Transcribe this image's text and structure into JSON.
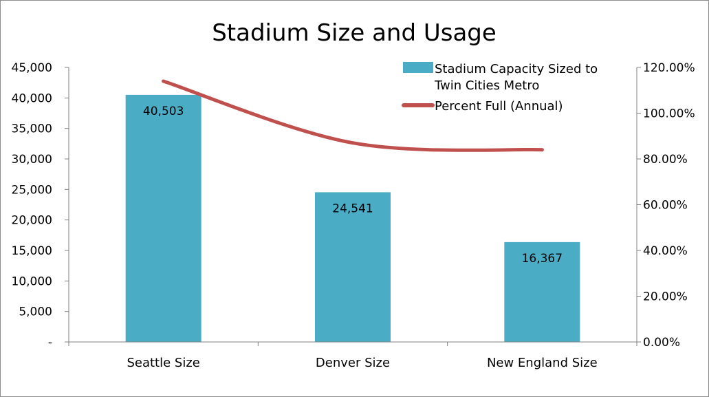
{
  "chart_data": {
    "type": "bar",
    "title": "Stadium Size and Usage",
    "categories": [
      "Seattle Size",
      "Denver Size",
      "New England Size"
    ],
    "series": [
      {
        "name": "Stadium Capacity Sized to Twin Cities Metro",
        "type": "bar",
        "axis": "left",
        "color": "#4BACC6",
        "values": [
          40503,
          24541,
          16367
        ],
        "data_labels": [
          "40,503",
          "24,541",
          "16,367"
        ]
      },
      {
        "name": "Percent Full (Annual)",
        "type": "line",
        "axis": "right",
        "color": "#C0504D",
        "smooth": true,
        "values": [
          1.14,
          0.87,
          0.84
        ]
      }
    ],
    "legend_name_lines": [
      [
        "Stadium Capacity Sized to",
        "Twin Cities Metro"
      ],
      [
        "Percent Full (Annual)"
      ]
    ],
    "y_left": {
      "ylim": [
        0,
        45000
      ],
      "ticks": [
        0,
        5000,
        10000,
        15000,
        20000,
        25000,
        30000,
        35000,
        40000,
        45000
      ],
      "tick_labels": [
        "-",
        "5,000",
        "10,000",
        "15,000",
        "20,000",
        "25,000",
        "30,000",
        "35,000",
        "40,000",
        "45,000"
      ]
    },
    "y_right": {
      "ylim": [
        0,
        1.2
      ],
      "ticks": [
        0,
        0.2,
        0.4,
        0.6,
        0.8,
        1.0,
        1.2
      ],
      "tick_labels": [
        "0.00%",
        "20.00%",
        "40.00%",
        "60.00%",
        "80.00%",
        "100.00%",
        "120.00%"
      ]
    },
    "grid": false,
    "legend_position": "top-right"
  }
}
